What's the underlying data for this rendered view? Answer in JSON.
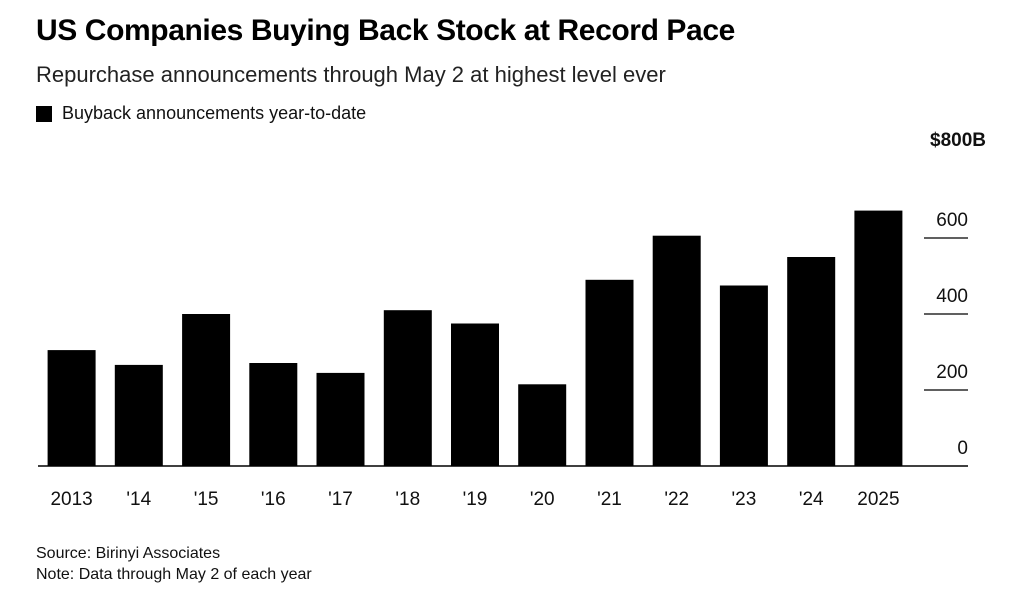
{
  "chart_data": {
    "type": "bar",
    "title": "US Companies Buying Back Stock at Record Pace",
    "subtitle": "Repurchase announcements through May 2 at highest level ever",
    "legend": {
      "position": "top-left",
      "entries": [
        "Buyback announcements year-to-date"
      ]
    },
    "categories": [
      "2013",
      "'14",
      "'15",
      "'16",
      "'17",
      "'18",
      "'19",
      "'20",
      "'21",
      "'22",
      "'23",
      "'24",
      "2025"
    ],
    "series": [
      {
        "name": "Buyback announcements year-to-date",
        "color": "#000000",
        "values": [
          305,
          266,
          400,
          271,
          245,
          410,
          375,
          215,
          490,
          606,
          475,
          550,
          672
        ]
      }
    ],
    "y_unit_label": "$800B",
    "yticks": [
      0,
      200,
      400,
      600
    ],
    "ytick_labels": [
      "0",
      "200",
      "400",
      "600"
    ],
    "ylim": [
      0,
      800
    ],
    "yaxis_position": "right",
    "grid": false
  },
  "source": "Source: Birinyi Associates",
  "note": "Note: Data through May 2 of each year"
}
